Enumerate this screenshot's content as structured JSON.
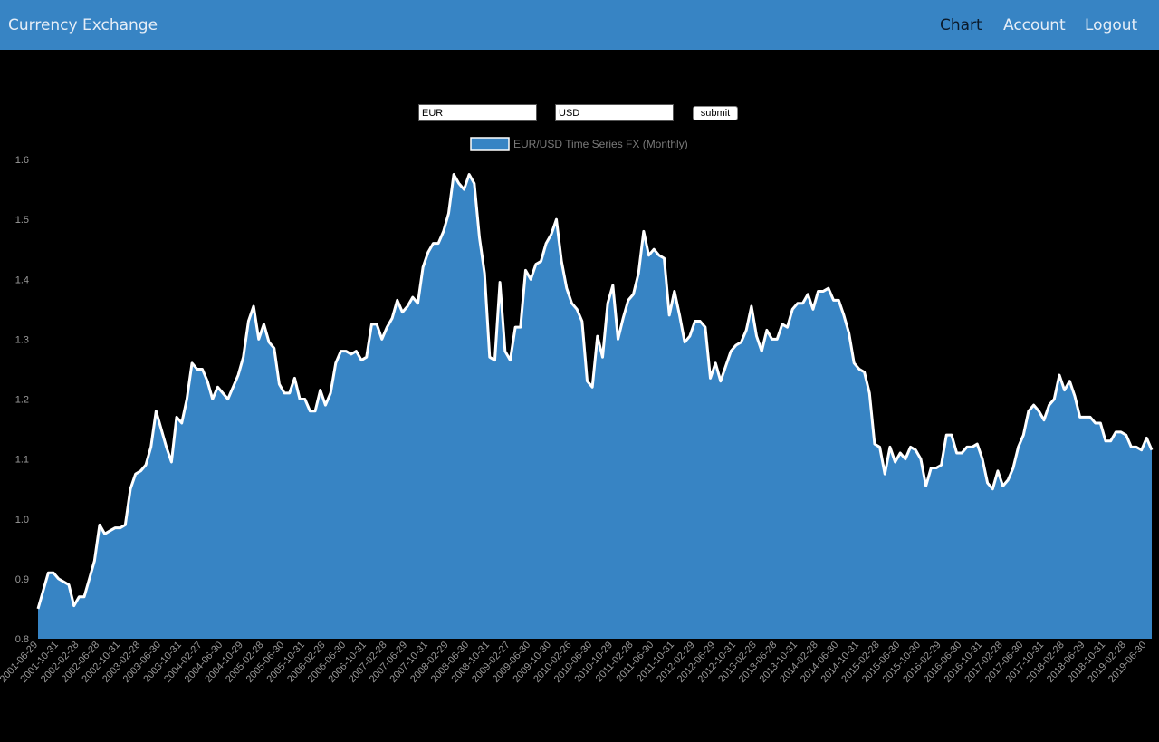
{
  "app": {
    "brand": "Currency Exchange",
    "nav": [
      {
        "label": "Chart",
        "active": true
      },
      {
        "label": "Account",
        "active": false
      },
      {
        "label": "Logout",
        "active": false
      }
    ]
  },
  "form": {
    "from_value": "EUR",
    "to_value": "USD",
    "submit_label": "submit"
  },
  "colors": {
    "navbar": "#3784c4",
    "area_fill": "#3784c4",
    "line": "#ffffff",
    "background": "#000000",
    "tick_text": "#999999"
  },
  "chart_data": {
    "type": "area",
    "title": "",
    "xlabel": "",
    "ylabel": "",
    "ylim": [
      0.8,
      1.6
    ],
    "yticks": [
      0.8,
      0.9,
      1.0,
      1.1,
      1.2,
      1.3,
      1.4,
      1.5,
      1.6
    ],
    "legend": {
      "label": "EUR/USD Time Series FX (Monthly)",
      "position": "top"
    },
    "x_tick_labels": [
      "2001-06-29",
      "2001-10-31",
      "2002-02-28",
      "2002-06-28",
      "2002-10-31",
      "2003-02-28",
      "2003-06-30",
      "2003-10-31",
      "2004-02-27",
      "2004-06-30",
      "2004-10-29",
      "2005-02-28",
      "2005-06-30",
      "2005-10-31",
      "2006-02-28",
      "2006-06-30",
      "2006-10-31",
      "2007-02-28",
      "2007-06-29",
      "2007-10-31",
      "2008-02-29",
      "2008-06-30",
      "2008-10-31",
      "2009-02-27",
      "2009-06-30",
      "2009-10-30",
      "2010-02-26",
      "2010-06-30",
      "2010-10-29",
      "2011-02-28",
      "2011-06-30",
      "2011-10-31",
      "2012-02-29",
      "2012-06-29",
      "2012-10-31",
      "2013-02-28",
      "2013-06-28",
      "2013-10-31",
      "2014-02-28",
      "2014-06-30",
      "2014-10-31",
      "2015-02-28",
      "2015-06-30",
      "2015-10-30",
      "2016-02-29",
      "2016-06-30",
      "2016-10-31",
      "2017-02-28",
      "2017-06-30",
      "2017-10-31",
      "2018-02-28",
      "2018-06-29",
      "2018-10-31",
      "2019-02-28",
      "2019-06-30"
    ],
    "series": [
      {
        "name": "EUR/USD Time Series FX (Monthly)",
        "start": "2001-06",
        "values": [
          0.85,
          0.88,
          0.91,
          0.91,
          0.9,
          0.895,
          0.89,
          0.855,
          0.87,
          0.87,
          0.9,
          0.93,
          0.99,
          0.975,
          0.98,
          0.985,
          0.985,
          0.99,
          1.05,
          1.075,
          1.08,
          1.09,
          1.12,
          1.18,
          1.15,
          1.12,
          1.095,
          1.17,
          1.16,
          1.2,
          1.26,
          1.25,
          1.25,
          1.23,
          1.2,
          1.22,
          1.21,
          1.2,
          1.22,
          1.24,
          1.27,
          1.33,
          1.355,
          1.3,
          1.325,
          1.295,
          1.285,
          1.225,
          1.21,
          1.21,
          1.235,
          1.2,
          1.2,
          1.18,
          1.18,
          1.215,
          1.19,
          1.21,
          1.26,
          1.28,
          1.28,
          1.275,
          1.28,
          1.265,
          1.27,
          1.325,
          1.325,
          1.3,
          1.32,
          1.335,
          1.365,
          1.345,
          1.355,
          1.37,
          1.36,
          1.42,
          1.445,
          1.46,
          1.46,
          1.48,
          1.51,
          1.575,
          1.56,
          1.55,
          1.575,
          1.56,
          1.47,
          1.41,
          1.27,
          1.265,
          1.395,
          1.28,
          1.265,
          1.32,
          1.32,
          1.415,
          1.4,
          1.425,
          1.43,
          1.46,
          1.475,
          1.5,
          1.43,
          1.385,
          1.36,
          1.35,
          1.33,
          1.23,
          1.22,
          1.305,
          1.27,
          1.36,
          1.39,
          1.3,
          1.335,
          1.365,
          1.375,
          1.41,
          1.48,
          1.44,
          1.45,
          1.44,
          1.435,
          1.34,
          1.38,
          1.34,
          1.295,
          1.305,
          1.33,
          1.33,
          1.32,
          1.235,
          1.26,
          1.23,
          1.255,
          1.28,
          1.29,
          1.295,
          1.315,
          1.355,
          1.305,
          1.28,
          1.315,
          1.3,
          1.3,
          1.325,
          1.32,
          1.35,
          1.36,
          1.36,
          1.375,
          1.35,
          1.38,
          1.38,
          1.385,
          1.365,
          1.365,
          1.34,
          1.31,
          1.26,
          1.25,
          1.245,
          1.21,
          1.125,
          1.12,
          1.075,
          1.12,
          1.095,
          1.11,
          1.1,
          1.12,
          1.115,
          1.1,
          1.055,
          1.085,
          1.085,
          1.09,
          1.14,
          1.14,
          1.11,
          1.11,
          1.12,
          1.12,
          1.125,
          1.1,
          1.06,
          1.05,
          1.08,
          1.055,
          1.065,
          1.085,
          1.12,
          1.14,
          1.18,
          1.19,
          1.18,
          1.165,
          1.19,
          1.2,
          1.24,
          1.215,
          1.23,
          1.205,
          1.17,
          1.17,
          1.17,
          1.16,
          1.16,
          1.13,
          1.13,
          1.145,
          1.145,
          1.14,
          1.12,
          1.12,
          1.115,
          1.135,
          1.115
        ]
      }
    ]
  }
}
